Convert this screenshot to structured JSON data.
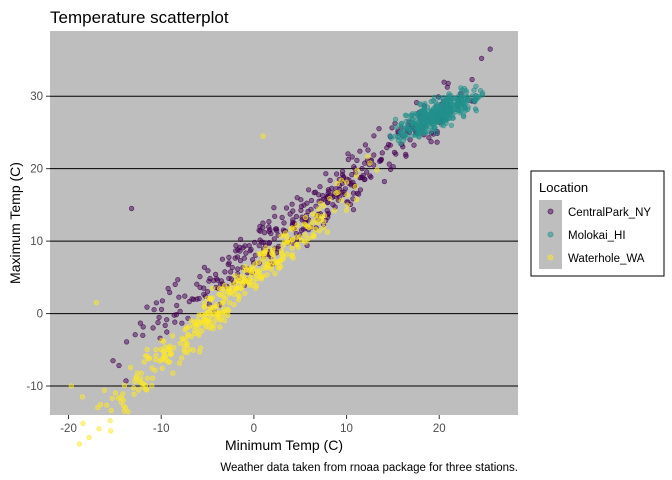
{
  "chart_data": {
    "type": "scatter",
    "title": "Temperature scatterplot",
    "xlabel": "Minimum Temp (C)",
    "ylabel": "Maximum Temp (C)",
    "caption": "Weather data taken from rnoaa package for three stations.",
    "xlim": [
      -22,
      28.5
    ],
    "ylim": [
      -14,
      39
    ],
    "x_ticks": [
      -20,
      -10,
      0,
      10,
      20
    ],
    "y_ticks": [
      -10,
      0,
      10,
      20,
      30
    ],
    "grid": "horizontal major lines",
    "panel_background": "#bebebe",
    "point_opacity": 0.5,
    "legend": {
      "title": "Location",
      "position": "right"
    },
    "series": [
      {
        "name": "CentralPark_NY",
        "color": "#440154",
        "x_range": [
          -15,
          26
        ],
        "slope": 0.96,
        "intercept": 8.5,
        "spread": 3.0,
        "count": 365,
        "highlight_points": [
          [
            -13.2,
            14.5
          ],
          [
            -13.8,
            -9.3
          ],
          [
            25.5,
            36.5
          ],
          [
            -15.2,
            -6.5
          ]
        ]
      },
      {
        "name": "Molokai_HI",
        "color": "#21908C",
        "x_range": [
          14.5,
          25
        ],
        "slope": 0.55,
        "intercept": 16.6,
        "spread": 1.7,
        "count": 365
      },
      {
        "name": "Waterhole_WA",
        "color": "#FDE725",
        "x_range": [
          -19.5,
          14.5
        ],
        "slope": 1.15,
        "intercept": 5.2,
        "spread": 2.4,
        "count": 365,
        "highlight_points": [
          [
            -19.7,
            -10.0
          ],
          [
            -18.5,
            -11.5
          ],
          [
            -17.0,
            1.5
          ],
          [
            1.0,
            24.5
          ]
        ]
      }
    ]
  }
}
